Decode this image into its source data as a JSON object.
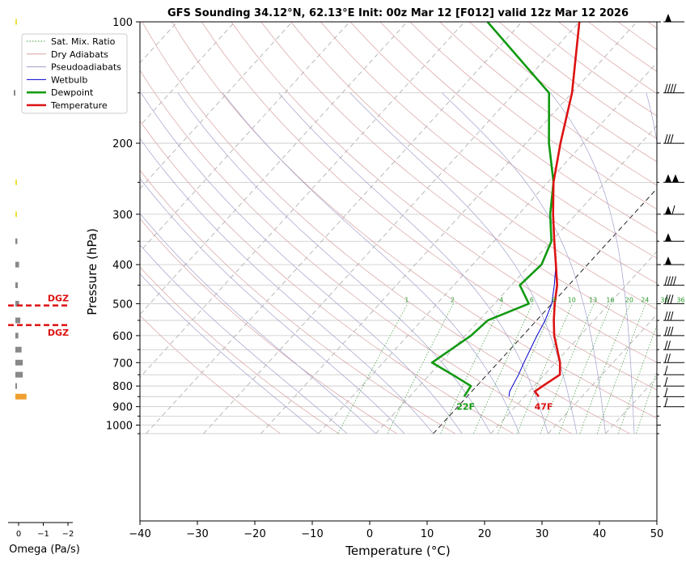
{
  "title": "GFS Sounding 34.12°N, 62.13°E Init: 00z Mar 12 [F012] valid 12z Mar 12 2026",
  "chart_data": {
    "type": "line",
    "title": "GFS Sounding 34.12°N, 62.13°E Init: 00z Mar 12 [F012] valid 12z Mar 12 2026",
    "xlabel": "Temperature (°C)",
    "ylabel": "Pressure (hPa)",
    "xlim": [
      -40,
      50
    ],
    "ylim": [
      1050,
      100
    ],
    "y_scale": "log",
    "grid": true,
    "x_ticks": [
      "−40",
      "−30",
      "−20",
      "−10",
      "0",
      "10",
      "20",
      "30",
      "40",
      "50"
    ],
    "y_ticks": [
      "100",
      "200",
      "300",
      "400",
      "500",
      "600",
      "700",
      "800",
      "900",
      "1000"
    ],
    "legend": {
      "position": "top-left",
      "entries": [
        {
          "label": "Sat. Mix. Ratio",
          "color": "#3a9a3a",
          "style": "dotted"
        },
        {
          "label": "Dry Adiabats",
          "color": "#d9a0a0",
          "style": "solid"
        },
        {
          "label": "Pseudoadiabats",
          "color": "#a0a0cc",
          "style": "solid"
        },
        {
          "label": "Wetbulb",
          "color": "#0000cc",
          "style": "solid"
        },
        {
          "label": "Dewpoint",
          "color": "#119911",
          "style": "solid"
        },
        {
          "label": "Temperature",
          "color": "#dd1111",
          "style": "solid"
        }
      ]
    },
    "series": [
      {
        "name": "Temperature",
        "color": "#dd1111",
        "points": [
          [
            850,
            12.5
          ],
          [
            825,
            11
          ],
          [
            800,
            11.5
          ],
          [
            750,
            12.7
          ],
          [
            700,
            10.8
          ],
          [
            600,
            5.5
          ],
          [
            550,
            3
          ],
          [
            500,
            0.5
          ],
          [
            450,
            -2
          ],
          [
            400,
            -5.5
          ],
          [
            350,
            -9.5
          ],
          [
            300,
            -14
          ],
          [
            250,
            -19
          ],
          [
            200,
            -24
          ],
          [
            150,
            -30
          ],
          [
            100,
            -40
          ]
        ]
      },
      {
        "name": "Dewpoint",
        "color": "#119911",
        "points": [
          [
            850,
            -0.5
          ],
          [
            800,
            -1
          ],
          [
            750,
            -6
          ],
          [
            700,
            -11.5
          ],
          [
            600,
            -9
          ],
          [
            550,
            -8.5
          ],
          [
            500,
            -4
          ],
          [
            450,
            -8.5
          ],
          [
            400,
            -8
          ],
          [
            350,
            -10
          ],
          [
            300,
            -14.5
          ],
          [
            250,
            -19
          ],
          [
            200,
            -26
          ],
          [
            150,
            -34
          ],
          [
            100,
            -56
          ]
        ]
      },
      {
        "name": "Wetbulb",
        "color": "#0000cc",
        "points": [
          [
            850,
            7.3
          ],
          [
            825,
            6.6
          ],
          [
            750,
            5.5
          ],
          [
            700,
            4.5
          ],
          [
            600,
            2.5
          ],
          [
            550,
            1.5
          ],
          [
            500,
            0
          ],
          [
            450,
            -2.5
          ],
          [
            400,
            -5.5
          ],
          [
            350,
            -9.5
          ],
          [
            300,
            -14
          ],
          [
            250,
            -19
          ],
          [
            200,
            -24
          ],
          [
            150,
            -30
          ],
          [
            100,
            -40
          ]
        ]
      }
    ],
    "mixing_ratio_labels": [
      "1",
      "2",
      "4",
      "6",
      "8",
      "10",
      "13",
      "16",
      "20",
      "24",
      "30",
      "36"
    ],
    "surface_labels": {
      "temperature": "47F",
      "dewpoint": "22F"
    },
    "omega": {
      "xlabel": "Omega (Pa/s)",
      "x_ticks": [
        "0",
        "−1",
        "−2"
      ],
      "dgz_label": "DGZ",
      "dgz_bounds_hpa": [
        505,
        565
      ],
      "bars": [
        {
          "p": 100,
          "omega": -0.02,
          "color": "#f0e040"
        },
        {
          "p": 150,
          "omega": 0.01,
          "color": "#888888"
        },
        {
          "p": 250,
          "omega": -0.02,
          "color": "#f0e040"
        },
        {
          "p": 300,
          "omega": -0.05,
          "color": "#f0e040"
        },
        {
          "p": 350,
          "omega": -0.08,
          "color": "#888888"
        },
        {
          "p": 400,
          "omega": -0.15,
          "color": "#888888"
        },
        {
          "p": 450,
          "omega": -0.1,
          "color": "#888888"
        },
        {
          "p": 500,
          "omega": -0.15,
          "color": "#888888"
        },
        {
          "p": 550,
          "omega": -0.2,
          "color": "#888888"
        },
        {
          "p": 600,
          "omega": -0.12,
          "color": "#888888"
        },
        {
          "p": 650,
          "omega": -0.25,
          "color": "#888888"
        },
        {
          "p": 700,
          "omega": -0.3,
          "color": "#888888"
        },
        {
          "p": 750,
          "omega": -0.3,
          "color": "#888888"
        },
        {
          "p": 800,
          "omega": -0.05,
          "color": "#888888"
        },
        {
          "p": 850,
          "omega": -0.45,
          "color": "#f0a030"
        }
      ]
    },
    "wind_barbs_present": true
  }
}
